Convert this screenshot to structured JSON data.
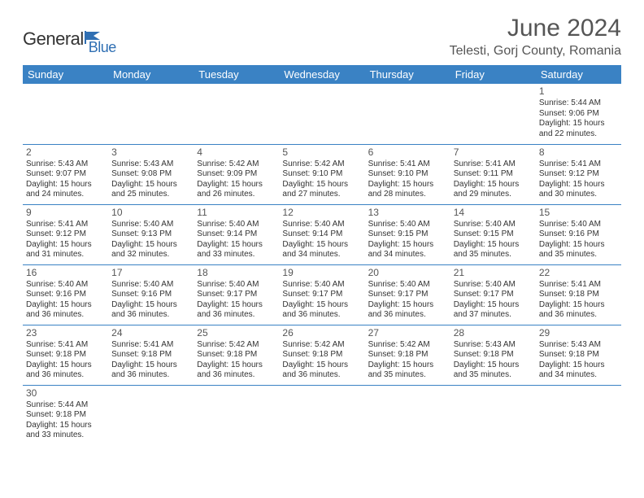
{
  "logo": {
    "text1": "General",
    "text2": "Blue",
    "icon_color": "#2f6fb3"
  },
  "header": {
    "title": "June 2024",
    "location": "Telesti, Gorj County, Romania"
  },
  "style": {
    "header_bg": "#3a82c4",
    "header_text": "#ffffff",
    "cell_border": "#3a82c4",
    "body_text": "#333333",
    "title_color": "#555555",
    "title_fontsize": 30,
    "location_fontsize": 16,
    "dayheader_fontsize": 13,
    "cell_fontsize": 10
  },
  "day_headers": [
    "Sunday",
    "Monday",
    "Tuesday",
    "Wednesday",
    "Thursday",
    "Friday",
    "Saturday"
  ],
  "weeks": [
    [
      null,
      null,
      null,
      null,
      null,
      null,
      {
        "n": "1",
        "sr": "Sunrise: 5:44 AM",
        "ss": "Sunset: 9:06 PM",
        "d1": "Daylight: 15 hours",
        "d2": "and 22 minutes."
      }
    ],
    [
      {
        "n": "2",
        "sr": "Sunrise: 5:43 AM",
        "ss": "Sunset: 9:07 PM",
        "d1": "Daylight: 15 hours",
        "d2": "and 24 minutes."
      },
      {
        "n": "3",
        "sr": "Sunrise: 5:43 AM",
        "ss": "Sunset: 9:08 PM",
        "d1": "Daylight: 15 hours",
        "d2": "and 25 minutes."
      },
      {
        "n": "4",
        "sr": "Sunrise: 5:42 AM",
        "ss": "Sunset: 9:09 PM",
        "d1": "Daylight: 15 hours",
        "d2": "and 26 minutes."
      },
      {
        "n": "5",
        "sr": "Sunrise: 5:42 AM",
        "ss": "Sunset: 9:10 PM",
        "d1": "Daylight: 15 hours",
        "d2": "and 27 minutes."
      },
      {
        "n": "6",
        "sr": "Sunrise: 5:41 AM",
        "ss": "Sunset: 9:10 PM",
        "d1": "Daylight: 15 hours",
        "d2": "and 28 minutes."
      },
      {
        "n": "7",
        "sr": "Sunrise: 5:41 AM",
        "ss": "Sunset: 9:11 PM",
        "d1": "Daylight: 15 hours",
        "d2": "and 29 minutes."
      },
      {
        "n": "8",
        "sr": "Sunrise: 5:41 AM",
        "ss": "Sunset: 9:12 PM",
        "d1": "Daylight: 15 hours",
        "d2": "and 30 minutes."
      }
    ],
    [
      {
        "n": "9",
        "sr": "Sunrise: 5:41 AM",
        "ss": "Sunset: 9:12 PM",
        "d1": "Daylight: 15 hours",
        "d2": "and 31 minutes."
      },
      {
        "n": "10",
        "sr": "Sunrise: 5:40 AM",
        "ss": "Sunset: 9:13 PM",
        "d1": "Daylight: 15 hours",
        "d2": "and 32 minutes."
      },
      {
        "n": "11",
        "sr": "Sunrise: 5:40 AM",
        "ss": "Sunset: 9:14 PM",
        "d1": "Daylight: 15 hours",
        "d2": "and 33 minutes."
      },
      {
        "n": "12",
        "sr": "Sunrise: 5:40 AM",
        "ss": "Sunset: 9:14 PM",
        "d1": "Daylight: 15 hours",
        "d2": "and 34 minutes."
      },
      {
        "n": "13",
        "sr": "Sunrise: 5:40 AM",
        "ss": "Sunset: 9:15 PM",
        "d1": "Daylight: 15 hours",
        "d2": "and 34 minutes."
      },
      {
        "n": "14",
        "sr": "Sunrise: 5:40 AM",
        "ss": "Sunset: 9:15 PM",
        "d1": "Daylight: 15 hours",
        "d2": "and 35 minutes."
      },
      {
        "n": "15",
        "sr": "Sunrise: 5:40 AM",
        "ss": "Sunset: 9:16 PM",
        "d1": "Daylight: 15 hours",
        "d2": "and 35 minutes."
      }
    ],
    [
      {
        "n": "16",
        "sr": "Sunrise: 5:40 AM",
        "ss": "Sunset: 9:16 PM",
        "d1": "Daylight: 15 hours",
        "d2": "and 36 minutes."
      },
      {
        "n": "17",
        "sr": "Sunrise: 5:40 AM",
        "ss": "Sunset: 9:16 PM",
        "d1": "Daylight: 15 hours",
        "d2": "and 36 minutes."
      },
      {
        "n": "18",
        "sr": "Sunrise: 5:40 AM",
        "ss": "Sunset: 9:17 PM",
        "d1": "Daylight: 15 hours",
        "d2": "and 36 minutes."
      },
      {
        "n": "19",
        "sr": "Sunrise: 5:40 AM",
        "ss": "Sunset: 9:17 PM",
        "d1": "Daylight: 15 hours",
        "d2": "and 36 minutes."
      },
      {
        "n": "20",
        "sr": "Sunrise: 5:40 AM",
        "ss": "Sunset: 9:17 PM",
        "d1": "Daylight: 15 hours",
        "d2": "and 36 minutes."
      },
      {
        "n": "21",
        "sr": "Sunrise: 5:40 AM",
        "ss": "Sunset: 9:17 PM",
        "d1": "Daylight: 15 hours",
        "d2": "and 37 minutes."
      },
      {
        "n": "22",
        "sr": "Sunrise: 5:41 AM",
        "ss": "Sunset: 9:18 PM",
        "d1": "Daylight: 15 hours",
        "d2": "and 36 minutes."
      }
    ],
    [
      {
        "n": "23",
        "sr": "Sunrise: 5:41 AM",
        "ss": "Sunset: 9:18 PM",
        "d1": "Daylight: 15 hours",
        "d2": "and 36 minutes."
      },
      {
        "n": "24",
        "sr": "Sunrise: 5:41 AM",
        "ss": "Sunset: 9:18 PM",
        "d1": "Daylight: 15 hours",
        "d2": "and 36 minutes."
      },
      {
        "n": "25",
        "sr": "Sunrise: 5:42 AM",
        "ss": "Sunset: 9:18 PM",
        "d1": "Daylight: 15 hours",
        "d2": "and 36 minutes."
      },
      {
        "n": "26",
        "sr": "Sunrise: 5:42 AM",
        "ss": "Sunset: 9:18 PM",
        "d1": "Daylight: 15 hours",
        "d2": "and 36 minutes."
      },
      {
        "n": "27",
        "sr": "Sunrise: 5:42 AM",
        "ss": "Sunset: 9:18 PM",
        "d1": "Daylight: 15 hours",
        "d2": "and 35 minutes."
      },
      {
        "n": "28",
        "sr": "Sunrise: 5:43 AM",
        "ss": "Sunset: 9:18 PM",
        "d1": "Daylight: 15 hours",
        "d2": "and 35 minutes."
      },
      {
        "n": "29",
        "sr": "Sunrise: 5:43 AM",
        "ss": "Sunset: 9:18 PM",
        "d1": "Daylight: 15 hours",
        "d2": "and 34 minutes."
      }
    ],
    [
      {
        "n": "30",
        "sr": "Sunrise: 5:44 AM",
        "ss": "Sunset: 9:18 PM",
        "d1": "Daylight: 15 hours",
        "d2": "and 33 minutes."
      },
      null,
      null,
      null,
      null,
      null,
      null
    ]
  ]
}
